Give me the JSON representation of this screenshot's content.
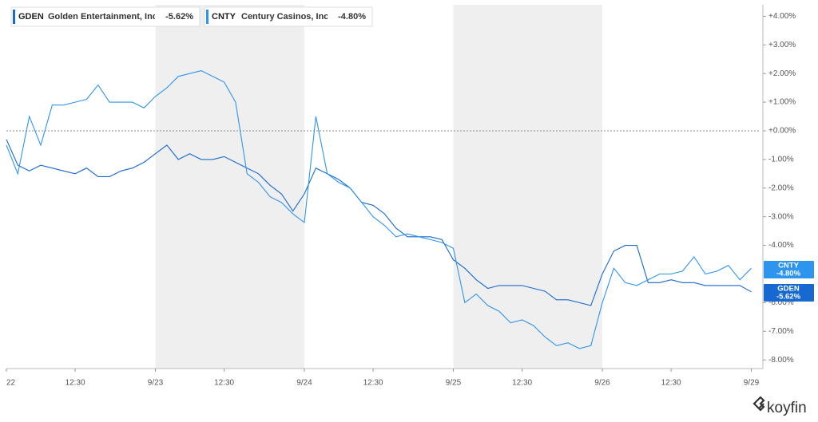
{
  "chart_data": {
    "type": "line",
    "brand": "koyfin",
    "xlim": [
      0,
      32.9
    ],
    "xticks": [
      {
        "value": 0,
        "label": "22"
      },
      {
        "value": 3,
        "label": "12:30"
      },
      {
        "value": 6.5,
        "label": "9/23"
      },
      {
        "value": 9.5,
        "label": "12:30"
      },
      {
        "value": 13,
        "label": "9/24"
      },
      {
        "value": 16,
        "label": "12:30"
      },
      {
        "value": 19.5,
        "label": "9/25"
      },
      {
        "value": 22.5,
        "label": "12:30"
      },
      {
        "value": 26,
        "label": "9/26"
      },
      {
        "value": 29,
        "label": "12:30"
      },
      {
        "value": 32.5,
        "label": "9/29"
      }
    ],
    "ylim": [
      -8.3,
      4.4
    ],
    "yticks": [
      {
        "value": 4,
        "label": "+4.00%"
      },
      {
        "value": 3,
        "label": "+3.00%"
      },
      {
        "value": 2,
        "label": "+2.00%"
      },
      {
        "value": 1,
        "label": "+1.00%"
      },
      {
        "value": 0,
        "label": "+0.00%"
      },
      {
        "value": -1,
        "label": "-1.00%"
      },
      {
        "value": -2,
        "label": "-2.00%"
      },
      {
        "value": -3,
        "label": "-3.00%"
      },
      {
        "value": -4,
        "label": "-4.00%"
      },
      {
        "value": -6,
        "label": "-6.00%"
      },
      {
        "value": -7,
        "label": "-7.00%"
      },
      {
        "value": -8,
        "label": "-8.00%"
      }
    ],
    "shaded_ranges": [
      [
        6.5,
        13
      ],
      [
        19.5,
        26
      ]
    ],
    "zero_line": true,
    "x": [
      0,
      0.5,
      1,
      1.5,
      2,
      2.5,
      3,
      3.5,
      4,
      4.5,
      5,
      5.5,
      6,
      6.5,
      7,
      7.5,
      8,
      8.5,
      9,
      9.5,
      10,
      10.5,
      11,
      11.5,
      12,
      12.5,
      13,
      13.5,
      14,
      14.5,
      15,
      15.5,
      16,
      16.5,
      17,
      17.5,
      18,
      18.5,
      19,
      19.5,
      20,
      20.5,
      21,
      21.5,
      22,
      22.5,
      23,
      23.5,
      24,
      24.5,
      25,
      25.5,
      26,
      26.5,
      27,
      27.5,
      28,
      28.5,
      29,
      29.5,
      30,
      30.5,
      31,
      31.5,
      32,
      32.5
    ],
    "series": [
      {
        "ticker": "GDEN",
        "name": "Golden Entertainment, Inc.",
        "last_label": "-5.62%",
        "color": "#1769d1",
        "values": [
          -0.3,
          -1.2,
          -1.4,
          -1.2,
          -1.3,
          -1.4,
          -1.5,
          -1.3,
          -1.6,
          -1.6,
          -1.4,
          -1.3,
          -1.1,
          -0.8,
          -0.5,
          -1.0,
          -0.8,
          -1.0,
          -1.0,
          -0.9,
          -1.1,
          -1.3,
          -1.5,
          -1.9,
          -2.2,
          -2.8,
          -2.2,
          -1.3,
          -1.5,
          -1.7,
          -2.0,
          -2.5,
          -2.6,
          -2.9,
          -3.4,
          -3.7,
          -3.7,
          -3.7,
          -3.8,
          -4.5,
          -4.8,
          -5.2,
          -5.5,
          -5.4,
          -5.4,
          -5.4,
          -5.5,
          -5.6,
          -5.9,
          -5.9,
          -6.0,
          -6.1,
          -5.0,
          -4.2,
          -4.0,
          -4.0,
          -5.3,
          -5.3,
          -5.2,
          -5.3,
          -5.3,
          -5.4,
          -5.4,
          -5.4,
          -5.4,
          -5.62
        ]
      },
      {
        "ticker": "CNTY",
        "name": "Century Casinos, Inc.",
        "last_label": "-4.80%",
        "color": "#2e95ee",
        "values": [
          -0.5,
          -1.5,
          0.5,
          -0.5,
          0.9,
          0.9,
          1.0,
          1.1,
          1.6,
          1.0,
          1.0,
          1.0,
          0.8,
          1.2,
          1.5,
          1.9,
          2.0,
          2.1,
          1.9,
          1.7,
          1.0,
          -1.5,
          -1.8,
          -2.3,
          -2.5,
          -2.9,
          -3.2,
          0.5,
          -1.5,
          -1.8,
          -2.0,
          -2.5,
          -3.0,
          -3.3,
          -3.7,
          -3.6,
          -3.7,
          -3.8,
          -3.9,
          -4.1,
          -6.0,
          -5.7,
          -6.1,
          -6.3,
          -6.7,
          -6.6,
          -6.8,
          -7.2,
          -7.5,
          -7.4,
          -7.6,
          -7.5,
          -6.0,
          -4.8,
          -5.3,
          -5.4,
          -5.2,
          -5.0,
          -5.0,
          -4.9,
          -4.4,
          -5.0,
          -4.9,
          -4.7,
          -5.2,
          -4.8
        ]
      }
    ]
  }
}
